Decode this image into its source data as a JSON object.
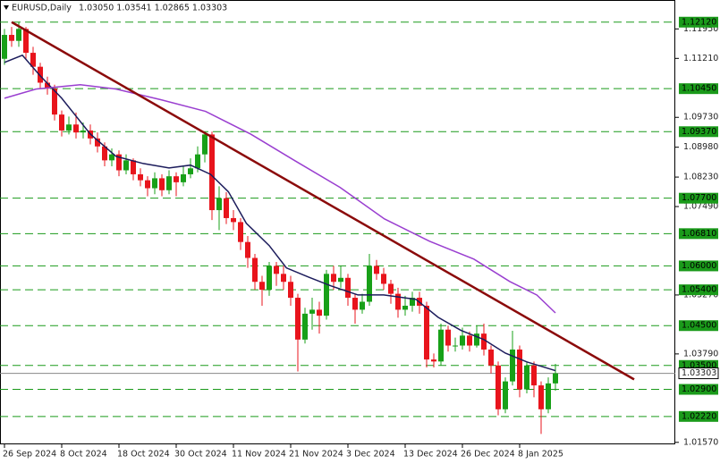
{
  "chart_data": {
    "type": "candlestick",
    "title": "EURUSD,Daily",
    "quote": "1.03050 1.03541 1.02865 1.03303",
    "categories": [
      "26 Sep 2024",
      null,
      null,
      null,
      null,
      null,
      null,
      null,
      "8 Oct 2024",
      null,
      null,
      null,
      null,
      null,
      null,
      null,
      "18 Oct 2024",
      null,
      null,
      null,
      null,
      null,
      null,
      null,
      "30 Oct 2024",
      null,
      null,
      null,
      null,
      null,
      null,
      null,
      "11 Nov 2024",
      null,
      null,
      null,
      null,
      null,
      null,
      null,
      "21 Nov 2024",
      null,
      null,
      null,
      null,
      null,
      null,
      null,
      "3 Dec 2024",
      null,
      null,
      null,
      null,
      null,
      null,
      null,
      "13 Dec 2024",
      null,
      null,
      null,
      null,
      null,
      null,
      null,
      "26 Dec 2024",
      null,
      null,
      null,
      null,
      null,
      null,
      null,
      "8 Jan 2025",
      null,
      null,
      null,
      null,
      null
    ],
    "open": [
      1.112,
      1.118,
      1.1165,
      1.1195,
      1.1135,
      1.11,
      1.106,
      1.1045,
      1.098,
      1.094,
      1.0955,
      1.0935,
      1.094,
      1.092,
      1.09,
      1.0865,
      1.088,
      1.084,
      1.0865,
      1.083,
      1.0815,
      1.0795,
      1.082,
      1.079,
      1.0825,
      1.081,
      1.083,
      1.0845,
      1.088,
      1.093,
      1.074,
      1.077,
      1.072,
      1.071,
      1.066,
      1.062,
      1.056,
      1.054,
      1.06,
      1.058,
      1.056,
      1.052,
      1.0415,
      1.048,
      1.049,
      1.0475,
      1.058,
      1.056,
      1.057,
      1.052,
      1.049,
      1.051,
      1.06,
      1.058,
      1.0555,
      1.053,
      1.049,
      1.05,
      1.052,
      1.05,
      1.0365,
      1.036,
      1.044,
      1.04,
      1.04,
      1.0425,
      1.04,
      1.043,
      1.039,
      1.035,
      1.024,
      1.031,
      1.039,
      1.029,
      1.035,
      1.03,
      1.024,
      1.0305
    ],
    "high": [
      1.1195,
      1.12,
      1.1212,
      1.12,
      1.115,
      1.111,
      1.1075,
      1.1055,
      1.099,
      1.0975,
      1.0985,
      1.096,
      1.0955,
      1.0935,
      1.091,
      1.0895,
      1.089,
      1.088,
      1.087,
      1.0845,
      1.0825,
      1.0835,
      1.083,
      1.084,
      1.0835,
      1.085,
      1.087,
      1.09,
      1.0937,
      1.0937,
      1.08,
      1.0785,
      1.074,
      1.072,
      1.0675,
      1.063,
      1.0575,
      1.061,
      1.061,
      1.06,
      1.0575,
      1.053,
      1.0495,
      1.052,
      1.051,
      1.059,
      1.06,
      1.06,
      1.058,
      1.053,
      1.053,
      1.063,
      1.0615,
      1.0595,
      1.0565,
      1.0545,
      1.0525,
      1.0535,
      1.0535,
      1.051,
      1.038,
      1.0455,
      1.045,
      1.042,
      1.0445,
      1.0435,
      1.045,
      1.0455,
      1.04,
      1.036,
      1.032,
      1.0437,
      1.04,
      1.036,
      1.036,
      1.031,
      1.032,
      1.03541
    ],
    "low": [
      1.1105,
      1.115,
      1.115,
      1.112,
      1.108,
      1.1045,
      1.103,
      1.0965,
      1.0925,
      1.093,
      1.092,
      1.092,
      1.0905,
      1.0885,
      1.085,
      1.085,
      1.0825,
      1.083,
      1.0815,
      1.08,
      1.0775,
      1.078,
      1.0775,
      1.078,
      1.0775,
      1.08,
      1.082,
      1.0835,
      1.086,
      1.0715,
      1.069,
      1.0705,
      1.069,
      1.064,
      1.0595,
      1.054,
      1.05,
      1.0525,
      1.055,
      1.054,
      1.05,
      1.0335,
      1.0405,
      1.044,
      1.043,
      1.0465,
      1.054,
      1.0545,
      1.05,
      1.0455,
      1.048,
      1.05,
      1.0565,
      1.054,
      1.0505,
      1.047,
      1.0475,
      1.0485,
      1.048,
      1.0345,
      1.0345,
      1.035,
      1.0385,
      1.0385,
      1.039,
      1.0385,
      1.0395,
      1.0375,
      1.033,
      1.0225,
      1.023,
      1.03,
      1.027,
      1.028,
      1.027,
      1.0178,
      1.023,
      1.02865
    ],
    "close": [
      1.118,
      1.1165,
      1.1195,
      1.1135,
      1.11,
      1.106,
      1.1045,
      1.098,
      1.094,
      1.0955,
      1.0935,
      1.094,
      1.092,
      1.09,
      1.0865,
      1.088,
      1.084,
      1.0865,
      1.083,
      1.0815,
      1.0795,
      1.082,
      1.079,
      1.0825,
      1.081,
      1.083,
      1.0845,
      1.088,
      1.093,
      1.074,
      1.077,
      1.072,
      1.071,
      1.066,
      1.062,
      1.056,
      1.054,
      1.06,
      1.058,
      1.056,
      1.052,
      1.0415,
      1.048,
      1.049,
      1.0475,
      1.058,
      1.056,
      1.057,
      1.052,
      1.049,
      1.051,
      1.06,
      1.058,
      1.0555,
      1.053,
      1.049,
      1.05,
      1.052,
      1.05,
      1.0365,
      1.036,
      1.044,
      1.04,
      1.04,
      1.0425,
      1.04,
      1.043,
      1.039,
      1.035,
      1.024,
      1.031,
      1.039,
      1.029,
      1.035,
      1.03,
      1.024,
      1.0305,
      1.03303
    ],
    "up_color": "#18a018",
    "down_color": "#e8141c",
    "ylim": [
      1.0152,
      1.12676
    ],
    "yticks": [
      {
        "value": 1.1195,
        "label": "1.11950"
      },
      {
        "value": 1.1121,
        "label": "1.11210"
      },
      {
        "value": 1.0973,
        "label": "1.09730"
      },
      {
        "value": 1.0898,
        "label": "1.08980"
      },
      {
        "value": 1.0823,
        "label": "1.08230"
      },
      {
        "value": 1.0749,
        "label": "1.07490"
      },
      {
        "value": 1.0527,
        "label": "1.05270"
      },
      {
        "value": 1.0379,
        "label": "1.03790"
      },
      {
        "value": 1.0157,
        "label": "1.01570"
      }
    ],
    "levels": [
      {
        "value": 1.1212,
        "label": "1.12120"
      },
      {
        "value": 1.1045,
        "label": "1.10450"
      },
      {
        "value": 1.0937,
        "label": "1.09370"
      },
      {
        "value": 1.077,
        "label": "1.07700"
      },
      {
        "value": 1.0681,
        "label": "1.06810"
      },
      {
        "value": 1.06,
        "label": "1.06000"
      },
      {
        "value": 1.054,
        "label": "1.05400"
      },
      {
        "value": 1.045,
        "label": "1.04500"
      },
      {
        "value": 1.035,
        "label": "1.03500"
      },
      {
        "value": 1.029,
        "label": "1.02900"
      },
      {
        "value": 1.0222,
        "label": "1.02220"
      }
    ],
    "level_color": "#1a9a1a",
    "current": {
      "value": 1.03303,
      "label": "1.03303"
    },
    "lines": [
      {
        "color": "#1c1c5c",
        "width": 1.5,
        "x": [
          0,
          2.5,
          5,
          8,
          12,
          15.6,
          19.4,
          23,
          26,
          28.8,
          31.3,
          33.8,
          37,
          39.4,
          42.5,
          45.6,
          49.4,
          53,
          57.5,
          60.6,
          63.8,
          67,
          70,
          73,
          77
        ],
        "values": [
          1.1111,
          1.1129,
          1.1077,
          1.1021,
          1.0931,
          1.0875,
          1.0857,
          1.0846,
          1.0853,
          1.083,
          1.0786,
          1.0707,
          1.0651,
          1.0595,
          1.0572,
          1.055,
          1.0527,
          1.0527,
          1.0516,
          1.0471,
          1.0438,
          1.0415,
          1.0381,
          1.0359,
          1.0337
        ]
      },
      {
        "color": "#9a3fd0",
        "width": 1.5,
        "x": [
          0,
          4.4,
          10.6,
          15.6,
          21.9,
          28.1,
          34.4,
          40.6,
          46.9,
          53.1,
          59.4,
          65.6,
          70.6,
          74.4,
          77
        ],
        "values": [
          1.1021,
          1.1044,
          1.1055,
          1.1044,
          1.1017,
          1.0988,
          1.0931,
          1.0864,
          1.0797,
          1.0718,
          1.0662,
          1.0617,
          1.0561,
          1.0527,
          1.0482
        ]
      },
      {
        "color": "#8b0a0a",
        "width": 2.5,
        "x": [
          1,
          88
        ],
        "values": [
          1.1212,
          1.0315
        ]
      }
    ]
  }
}
